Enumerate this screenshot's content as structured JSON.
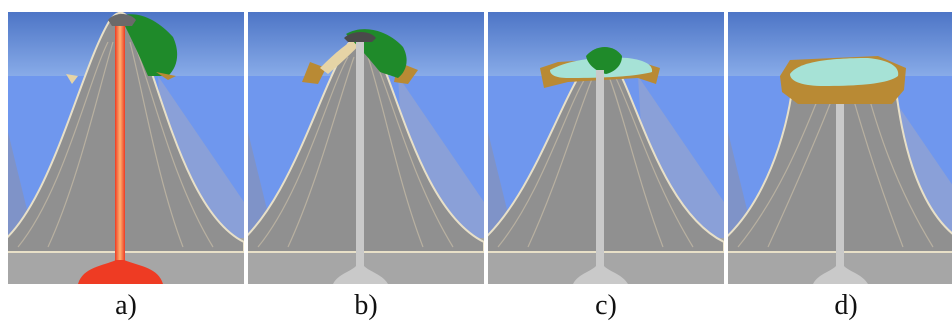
{
  "panels": [
    {
      "id": "a",
      "label": "a)",
      "stage": "active-volcano-with-fringing-reef",
      "magma": true
    },
    {
      "id": "b",
      "label": "b)",
      "stage": "subsiding-volcano-barrier-reef",
      "magma": false
    },
    {
      "id": "c",
      "label": "c)",
      "stage": "island-mostly-submerged-lagoon",
      "magma": false
    },
    {
      "id": "d",
      "label": "d)",
      "stage": "atoll",
      "magma": false
    }
  ],
  "colors": {
    "sea_surface_top": "#4f78c9",
    "sea_surface_bottom": "#86a8e6",
    "deep_water": "#6f97ee",
    "volcano": "#8f8f8f",
    "volcano_edge": "#e8e0c8",
    "seafloor": "#a6a6a6",
    "magma": "#ee3b23",
    "magma_glow": "#ffb070",
    "conduit": "#c9c9c9",
    "vegetation": "#1f8a2a",
    "reef": "#b98a34",
    "lagoon": "#a6e2d6"
  }
}
